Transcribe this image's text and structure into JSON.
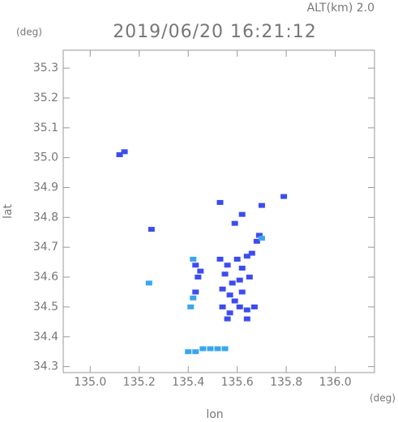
{
  "chart_data": {
    "type": "scatter",
    "title": "2019/06/20 16:21:12",
    "subtitle": "ALT(km) 2.0",
    "y_unit": "(deg)",
    "x_unit": "(deg)",
    "xlabel": "lon",
    "ylabel": "lat",
    "xlim": [
      134.89,
      136.16
    ],
    "ylim": [
      34.28,
      35.36
    ],
    "xticks": [
      {
        "value": 135,
        "label": "135.0"
      },
      135.2,
      135.4,
      135.6,
      135.8,
      {
        "value": 136,
        "label": "136.0"
      }
    ],
    "yticks": [
      34.3,
      34.4,
      34.5,
      34.6,
      34.7,
      34.8,
      34.9,
      {
        "value": 35,
        "label": "35.0"
      },
      35.1,
      35.2,
      35.3
    ],
    "series": [
      {
        "color": "#3c4cf0",
        "x": [
          135.12,
          135.14,
          135.25,
          135.53,
          135.62,
          135.7,
          135.79,
          135.59,
          135.69,
          135.68,
          135.53,
          135.56,
          135.6,
          135.62,
          135.64,
          135.66,
          135.55,
          135.58,
          135.61,
          135.65,
          135.54,
          135.57,
          135.59,
          135.62,
          135.54,
          135.57,
          135.61,
          135.64,
          135.67,
          135.64,
          135.56,
          135.43,
          135.44,
          135.43,
          135.45
        ],
        "y": [
          35.01,
          35.02,
          34.76,
          34.85,
          34.81,
          34.84,
          34.87,
          34.78,
          34.74,
          34.72,
          34.66,
          34.64,
          34.66,
          34.63,
          34.67,
          34.68,
          34.61,
          34.58,
          34.59,
          34.6,
          34.56,
          34.54,
          34.52,
          34.55,
          34.5,
          34.48,
          34.5,
          34.49,
          34.5,
          34.46,
          34.46,
          34.64,
          34.6,
          34.55,
          34.62
        ]
      },
      {
        "color": "#3aa6f0",
        "x": [
          135.41,
          135.24,
          135.42,
          135.4,
          135.43,
          135.46,
          135.49,
          135.52,
          135.55,
          135.42,
          135.7
        ],
        "y": [
          34.5,
          34.58,
          34.66,
          34.35,
          34.35,
          34.36,
          34.36,
          34.36,
          34.36,
          34.53,
          34.73
        ]
      }
    ]
  }
}
